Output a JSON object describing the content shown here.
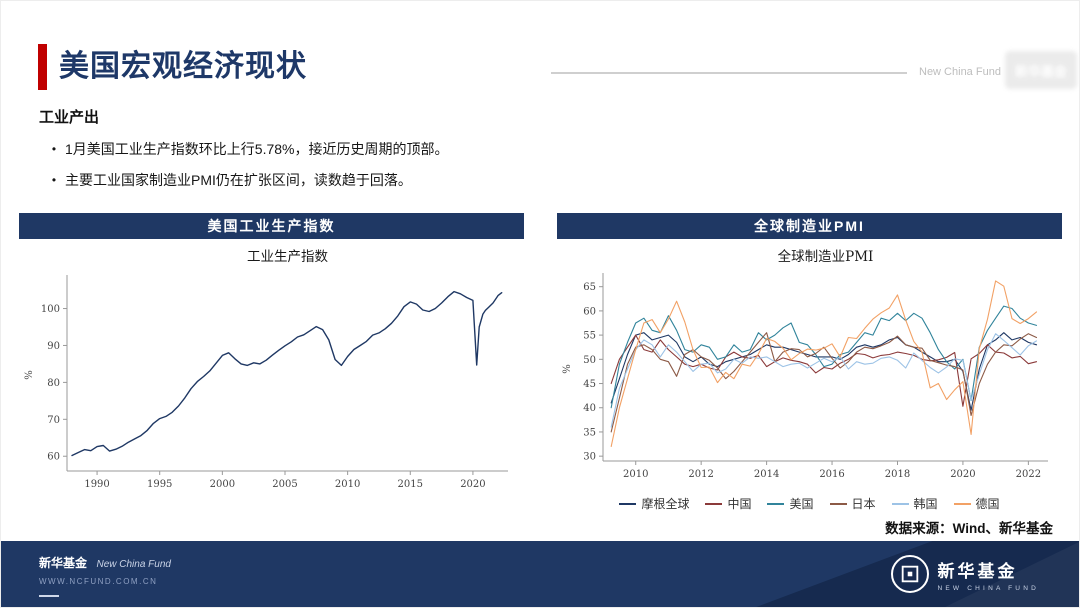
{
  "page": {
    "title": "美国宏观经济现状",
    "section": "工业产出",
    "bullet_char": "•",
    "bullets": [
      "1月美国工业生产指数环比上行5.78%，接近历史周期的顶部。",
      "主要工业国家制造业PMI仍在扩张区间，读数趋于回落。"
    ],
    "watermark": "New China Fund",
    "watermark_logo": "新华基金",
    "data_source": "数据来源：Wind、新华基金"
  },
  "panels": [
    {
      "header": "美国工业生产指数"
    },
    {
      "header": "全球制造业PMI"
    }
  ],
  "footer": {
    "brand_cn": "新华基金",
    "brand_en": "New China Fund",
    "url": "WWW.NCFUND.COM.CN",
    "logo_cn": "新华基金",
    "logo_en": "NEW CHINA FUND"
  },
  "colors": {
    "navy": "#1f3864",
    "accent_red": "#c00000"
  },
  "chart_data": [
    {
      "type": "line",
      "title": "工业生产指数",
      "ylabel": "%",
      "xlim": [
        1987.6,
        2022.8
      ],
      "ylim": [
        56,
        108
      ],
      "yticks": [
        60,
        70,
        80,
        90,
        100
      ],
      "xticks": [
        1990,
        1995,
        2000,
        2005,
        2010,
        2015,
        2020
      ],
      "grid": false,
      "legend_position": "none",
      "series": [
        {
          "name": "工业生产指数",
          "color": "#1f3864",
          "points": [
            [
              1988,
              60.2
            ],
            [
              1988.5,
              61
            ],
            [
              1989,
              61.8
            ],
            [
              1989.5,
              61.5
            ],
            [
              1990,
              62.6
            ],
            [
              1990.5,
              62.9
            ],
            [
              1991,
              61.4
            ],
            [
              1991.5,
              61.9
            ],
            [
              1992,
              62.7
            ],
            [
              1992.5,
              63.8
            ],
            [
              1993,
              64.7
            ],
            [
              1993.5,
              65.6
            ],
            [
              1994,
              67
            ],
            [
              1994.5,
              68.9
            ],
            [
              1995,
              70.2
            ],
            [
              1995.5,
              70.8
            ],
            [
              1996,
              71.9
            ],
            [
              1996.5,
              73.6
            ],
            [
              1997,
              75.8
            ],
            [
              1997.5,
              78.3
            ],
            [
              1998,
              80.2
            ],
            [
              1998.5,
              81.6
            ],
            [
              1999,
              83.1
            ],
            [
              1999.5,
              85.2
            ],
            [
              2000,
              87.3
            ],
            [
              2000.5,
              88
            ],
            [
              2001,
              86.4
            ],
            [
              2001.5,
              85
            ],
            [
              2002,
              84.6
            ],
            [
              2002.5,
              85.3
            ],
            [
              2003,
              85
            ],
            [
              2003.5,
              86
            ],
            [
              2004,
              87.4
            ],
            [
              2004.5,
              88.7
            ],
            [
              2005,
              89.9
            ],
            [
              2005.5,
              91
            ],
            [
              2006,
              92.3
            ],
            [
              2006.5,
              92.9
            ],
            [
              2007,
              94
            ],
            [
              2007.5,
              95.1
            ],
            [
              2008,
              94.3
            ],
            [
              2008.5,
              91.5
            ],
            [
              2009,
              86.2
            ],
            [
              2009.5,
              84.6
            ],
            [
              2010,
              87
            ],
            [
              2010.5,
              88.9
            ],
            [
              2011,
              90
            ],
            [
              2011.5,
              91.1
            ],
            [
              2012,
              92.8
            ],
            [
              2012.5,
              93.4
            ],
            [
              2013,
              94.5
            ],
            [
              2013.5,
              96
            ],
            [
              2014,
              98
            ],
            [
              2014.5,
              100.5
            ],
            [
              2015,
              101.8
            ],
            [
              2015.5,
              101.2
            ],
            [
              2016,
              99.6
            ],
            [
              2016.5,
              99.2
            ],
            [
              2017,
              100
            ],
            [
              2017.5,
              101.5
            ],
            [
              2018,
              103.2
            ],
            [
              2018.5,
              104.6
            ],
            [
              2019,
              104
            ],
            [
              2019.5,
              103
            ],
            [
              2020,
              102.2
            ],
            [
              2020.3,
              84.7
            ],
            [
              2020.5,
              95
            ],
            [
              2020.8,
              98.5
            ],
            [
              2021,
              99.5
            ],
            [
              2021.3,
              100.5
            ],
            [
              2021.6,
              101.5
            ],
            [
              2022,
              103.5
            ],
            [
              2022.3,
              104.3
            ]
          ]
        }
      ]
    },
    {
      "type": "line",
      "title": "全球制造业PMI",
      "ylabel": "%",
      "xlim": [
        2009.0,
        2022.6
      ],
      "ylim": [
        29,
        67
      ],
      "yticks": [
        30,
        35,
        40,
        45,
        50,
        55,
        60,
        65
      ],
      "xticks": [
        2010,
        2012,
        2014,
        2016,
        2018,
        2020,
        2022
      ],
      "grid": false,
      "legend_position": "bottom",
      "x_start": 2009.25,
      "x_step": 0.25,
      "series": [
        {
          "name": "摩根全球",
          "color": "#1f3864",
          "values": [
            41,
            46,
            51,
            55,
            55.5,
            54,
            54.5,
            55,
            53.5,
            50.5,
            49.5,
            50.5,
            49,
            48.5,
            49.5,
            50,
            50.5,
            51,
            52,
            53,
            52.5,
            52.5,
            52,
            51.5,
            51,
            50.5,
            50.5,
            50.5,
            50,
            51,
            52.5,
            53,
            52.5,
            53,
            54,
            54.5,
            53,
            52.5,
            51.5,
            50.5,
            49.5,
            49.5,
            50,
            47.5,
            39.5,
            48,
            53,
            54,
            55.5,
            54,
            54.5,
            53.5,
            53
          ]
        },
        {
          "name": "中国",
          "color": "#8b3a3a",
          "values": [
            45,
            50,
            52.5,
            55,
            52,
            51.5,
            54,
            52,
            50.5,
            49,
            48.5,
            49,
            48.2,
            47.8,
            50.5,
            51.5,
            50.5,
            50.2,
            50.8,
            48.5,
            49.5,
            50.3,
            49.8,
            49.5,
            49,
            47.2,
            48.3,
            48,
            49.2,
            50,
            51.2,
            51,
            50.3,
            50.8,
            51,
            51.5,
            51.2,
            50.8,
            50,
            49.7,
            49.9,
            50.4,
            51.4,
            40.3,
            50.1,
            51.2,
            53,
            51.5,
            51.3,
            50.3,
            50.6,
            49.1,
            49.5
          ]
        },
        {
          "name": "美国",
          "color": "#31849b",
          "values": [
            40,
            49,
            53.5,
            57.5,
            58.5,
            56,
            55.5,
            59,
            56,
            52,
            51.5,
            53,
            52.5,
            50,
            50.5,
            53,
            51.5,
            52,
            55.5,
            54,
            55,
            56.5,
            57.5,
            53.5,
            53,
            51,
            48.5,
            49,
            51,
            51.5,
            53.5,
            55.5,
            55,
            58.5,
            58,
            59.5,
            58,
            59.5,
            58.5,
            55.5,
            52,
            49.5,
            48,
            50,
            41.5,
            52.5,
            56,
            58.5,
            61,
            60.5,
            58.5,
            57.5,
            57
          ]
        },
        {
          "name": "日本",
          "color": "#8c5a46",
          "values": [
            35,
            42,
            49,
            52.5,
            53,
            52,
            50,
            49.5,
            46.5,
            51,
            52,
            50.5,
            49.8,
            48.2,
            46,
            47.5,
            49.5,
            51.5,
            53.5,
            55.5,
            49.5,
            51.5,
            52.2,
            52,
            50.5,
            51.2,
            52.5,
            50.2,
            48.2,
            49.5,
            51.5,
            52.5,
            52.2,
            52.8,
            53.5,
            54.8,
            53,
            52.5,
            52.3,
            49.8,
            49.3,
            48.8,
            48.5,
            47.8,
            38.4,
            45,
            49,
            51.5,
            53,
            52.8,
            54.2,
            55.3,
            54.5
          ]
        },
        {
          "name": "韩国",
          "color": "#9dc3e6",
          "values": [
            36,
            44,
            48,
            52,
            54,
            53,
            50.5,
            53,
            51.5,
            49.5,
            47.5,
            49,
            49.2,
            47.2,
            48,
            50,
            49.2,
            50.5,
            50.2,
            50.5,
            49.5,
            48.5,
            49,
            49.2,
            48.2,
            49.2,
            50.2,
            49.5,
            50.5,
            48,
            49.5,
            49,
            49.2,
            50.2,
            50.5,
            49.8,
            48.2,
            51.3,
            49.8,
            48.3,
            47.2,
            48.4,
            50.1,
            49.8,
            41.6,
            46.9,
            52,
            55.3,
            53.9,
            52.4,
            50.9,
            52.8,
            53.8
          ]
        },
        {
          "name": "德国",
          "color": "#f2a165",
          "values": [
            32,
            40,
            46,
            52,
            57.5,
            58.2,
            55.5,
            58.3,
            62,
            57.7,
            52,
            48.3,
            48.4,
            45.2,
            47.3,
            46,
            49,
            48.6,
            51.1,
            54.3,
            53.7,
            52.3,
            49.9,
            51.2,
            52.1,
            51.9,
            52.3,
            53.2,
            50.5,
            54.5,
            54.3,
            56.4,
            58.3,
            59.6,
            60.6,
            63.3,
            58.1,
            53.7,
            51.5,
            44.1,
            45,
            41.7,
            43.7,
            45.4,
            34.5,
            52.2,
            58.3,
            66.2,
            65.1,
            58.4,
            57.4,
            58.4,
            59.8
          ]
        }
      ]
    }
  ]
}
